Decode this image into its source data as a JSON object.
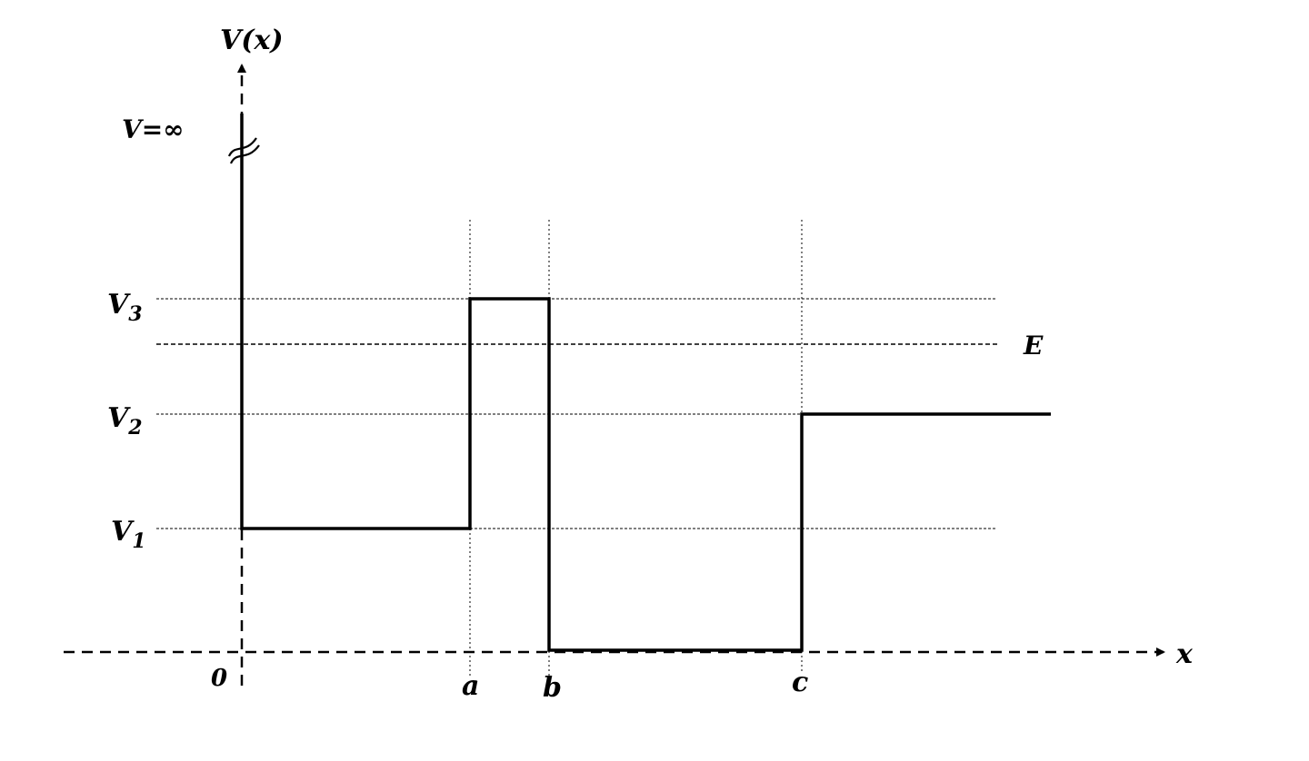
{
  "diagram": {
    "y_axis_label": "V(x)",
    "x_axis_label": "x",
    "infinite_wall_label": "V=∞",
    "origin_label": "0",
    "energy_label": "E",
    "levels": [
      {
        "symbol": "V",
        "subscript": "3"
      },
      {
        "symbol": "V",
        "subscript": "2"
      },
      {
        "symbol": "V",
        "subscript": "1"
      }
    ],
    "positions": [
      "a",
      "b",
      "c"
    ],
    "line_color": "#000000"
  }
}
